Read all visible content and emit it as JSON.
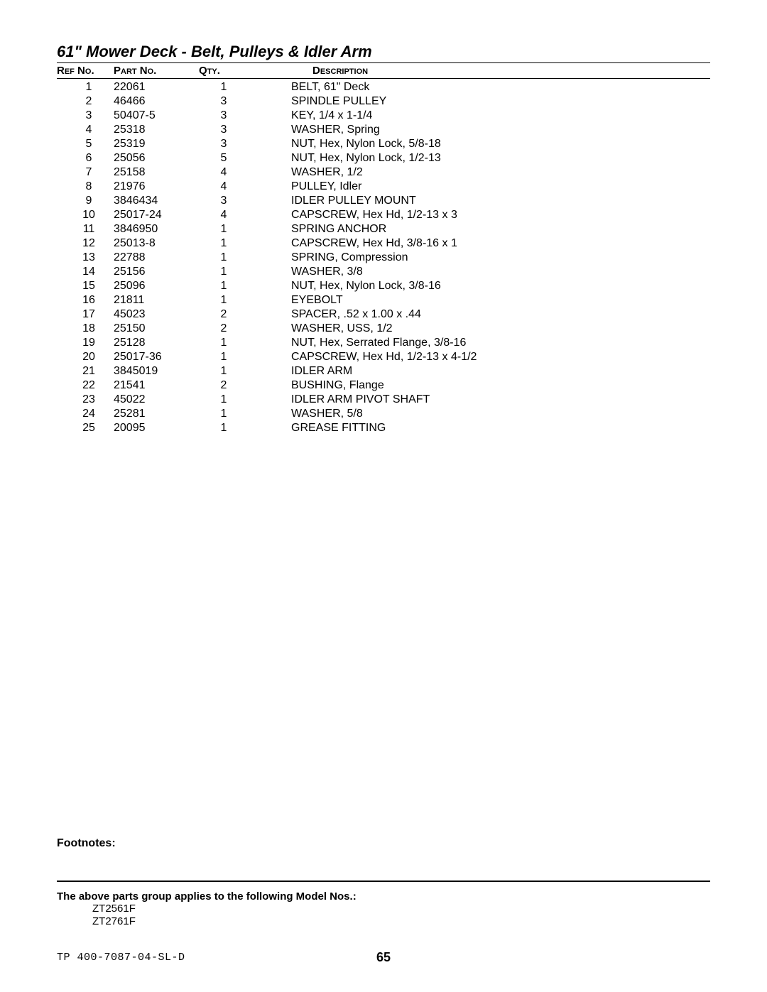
{
  "title": "61\" Mower Deck - Belt, Pulleys & Idler Arm",
  "headers": {
    "ref": "Ref No.",
    "part": "Part No.",
    "qty": "Qty.",
    "desc": "Description"
  },
  "rows": [
    {
      "ref": "1",
      "part": "22061",
      "qty": "1",
      "desc": "BELT, 61\" Deck"
    },
    {
      "ref": "2",
      "part": "46466",
      "qty": "3",
      "desc": "SPINDLE PULLEY"
    },
    {
      "ref": "3",
      "part": "50407-5",
      "qty": "3",
      "desc": "KEY, 1/4 x 1-1/4"
    },
    {
      "ref": "4",
      "part": "25318",
      "qty": "3",
      "desc": "WASHER, Spring"
    },
    {
      "ref": "5",
      "part": "25319",
      "qty": "3",
      "desc": "NUT, Hex, Nylon Lock, 5/8-18"
    },
    {
      "ref": "6",
      "part": "25056",
      "qty": "5",
      "desc": "NUT, Hex, Nylon Lock, 1/2-13"
    },
    {
      "ref": "7",
      "part": "25158",
      "qty": "4",
      "desc": "WASHER, 1/2"
    },
    {
      "ref": "8",
      "part": "21976",
      "qty": "4",
      "desc": "PULLEY, Idler"
    },
    {
      "ref": "9",
      "part": "3846434",
      "qty": "3",
      "desc": "IDLER PULLEY MOUNT"
    },
    {
      "ref": "10",
      "part": "25017-24",
      "qty": "4",
      "desc": "CAPSCREW, Hex Hd, 1/2-13 x 3"
    },
    {
      "ref": "11",
      "part": "3846950",
      "qty": "1",
      "desc": "SPRING ANCHOR"
    },
    {
      "ref": "12",
      "part": "25013-8",
      "qty": "1",
      "desc": "CAPSCREW, Hex Hd, 3/8-16 x 1"
    },
    {
      "ref": "13",
      "part": "22788",
      "qty": "1",
      "desc": "SPRING, Compression"
    },
    {
      "ref": "14",
      "part": "25156",
      "qty": "1",
      "desc": "WASHER, 3/8"
    },
    {
      "ref": "15",
      "part": "25096",
      "qty": "1",
      "desc": "NUT, Hex, Nylon Lock, 3/8-16"
    },
    {
      "ref": "16",
      "part": "21811",
      "qty": "1",
      "desc": "EYEBOLT"
    },
    {
      "ref": "17",
      "part": "45023",
      "qty": "2",
      "desc": "SPACER, .52 x 1.00 x .44"
    },
    {
      "ref": "18",
      "part": "25150",
      "qty": "2",
      "desc": "WASHER, USS, 1/2"
    },
    {
      "ref": "19",
      "part": "25128",
      "qty": "1",
      "desc": "NUT, Hex, Serrated Flange, 3/8-16"
    },
    {
      "ref": "20",
      "part": "25017-36",
      "qty": "1",
      "desc": "CAPSCREW, Hex Hd, 1/2-13 x 4-1/2"
    },
    {
      "ref": "21",
      "part": "3845019",
      "qty": "1",
      "desc": "IDLER ARM"
    },
    {
      "ref": "22",
      "part": "21541",
      "qty": "2",
      "desc": "BUSHING, Flange"
    },
    {
      "ref": "23",
      "part": "45022",
      "qty": "1",
      "desc": "IDLER ARM PIVOT SHAFT"
    },
    {
      "ref": "24",
      "part": "25281",
      "qty": "1",
      "desc": "WASHER, 5/8"
    },
    {
      "ref": "25",
      "part": "20095",
      "qty": "1",
      "desc": "GREASE FITTING"
    }
  ],
  "footnotes_label": "Footnotes:",
  "applies_label": "The above parts group applies to the following Model Nos.:",
  "models": [
    "ZT2561F",
    "ZT2761F"
  ],
  "doc_number": "TP 400-7087-04-SL-D",
  "page_number": "65"
}
